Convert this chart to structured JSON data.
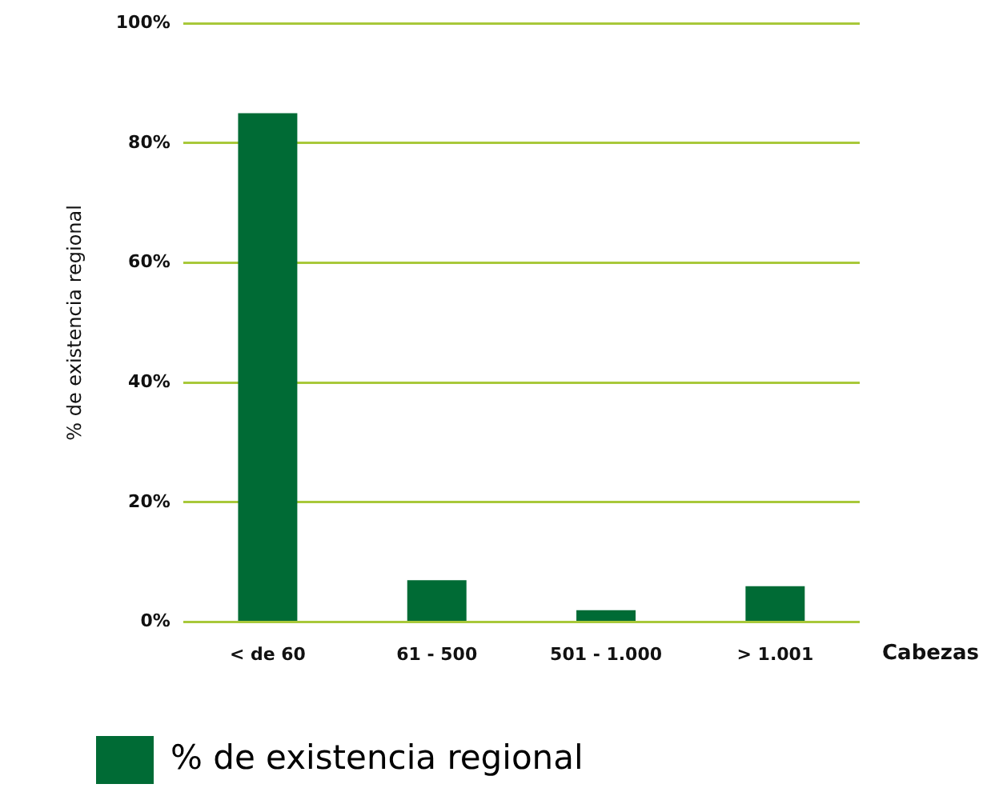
{
  "chart_data": {
    "type": "bar",
    "categories": [
      "< de 60",
      "61 - 500",
      "501 - 1.000",
      "> 1.001"
    ],
    "series": [
      {
        "name": "% de existencia regional",
        "color": "#006b35",
        "values": [
          85,
          7,
          2,
          6
        ]
      }
    ],
    "xlabel": "Cabezas",
    "ylabel": "% de existencia regional",
    "ylim": [
      0,
      100
    ],
    "yticks": [
      {
        "value": 0,
        "label": "0%"
      },
      {
        "value": 20,
        "label": "20%"
      },
      {
        "value": 40,
        "label": "40%"
      },
      {
        "value": 60,
        "label": "60%"
      },
      {
        "value": 80,
        "label": "80%"
      },
      {
        "value": 100,
        "label": "100%"
      }
    ],
    "grid": "y",
    "legend": "bottom left"
  }
}
